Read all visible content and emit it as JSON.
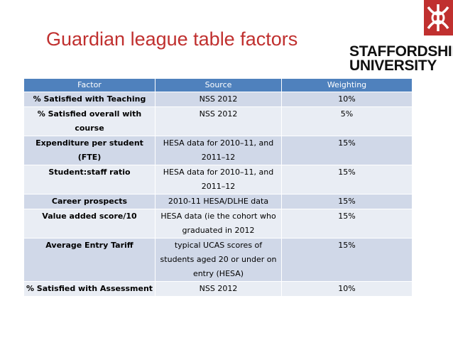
{
  "header": {
    "title": "Guardian league table factors",
    "logo_lines": [
      "STAFFORDSHIRE",
      "UNIVERSITY"
    ]
  },
  "table": {
    "columns": [
      "Factor",
      "Source",
      "Weighting"
    ],
    "rows": [
      [
        [
          "% Satisfied with Teaching"
        ],
        [
          "NSS 2012"
        ],
        [
          "10%"
        ]
      ],
      [
        [
          "% Satisfied overall with",
          "course"
        ],
        [
          "NSS 2012"
        ],
        [
          "5%"
        ]
      ],
      [
        [
          "Expenditure per student",
          "(FTE)"
        ],
        [
          "HESA data for 2010–11, and",
          "2011–12"
        ],
        [
          "15%"
        ]
      ],
      [
        [
          "Student:staff ratio"
        ],
        [
          "HESA data for 2010–11, and",
          "2011–12"
        ],
        [
          "15%"
        ]
      ],
      [
        [
          "Career prospects"
        ],
        [
          "2010-11 HESA/DLHE data"
        ],
        [
          "15%"
        ]
      ],
      [
        [
          "Value added score/10"
        ],
        [
          "HESA data (ie the cohort who",
          "graduated in 2012"
        ],
        [
          "15%"
        ]
      ],
      [
        [
          "Average Entry Tariff"
        ],
        [
          "typical UCAS scores of",
          "students aged 20 or under on",
          "entry (HESA)"
        ],
        [
          "15%"
        ]
      ],
      [
        [
          "% Satisfied with Assessment"
        ],
        [
          "NSS 2012"
        ],
        [
          "10%"
        ]
      ]
    ]
  }
}
